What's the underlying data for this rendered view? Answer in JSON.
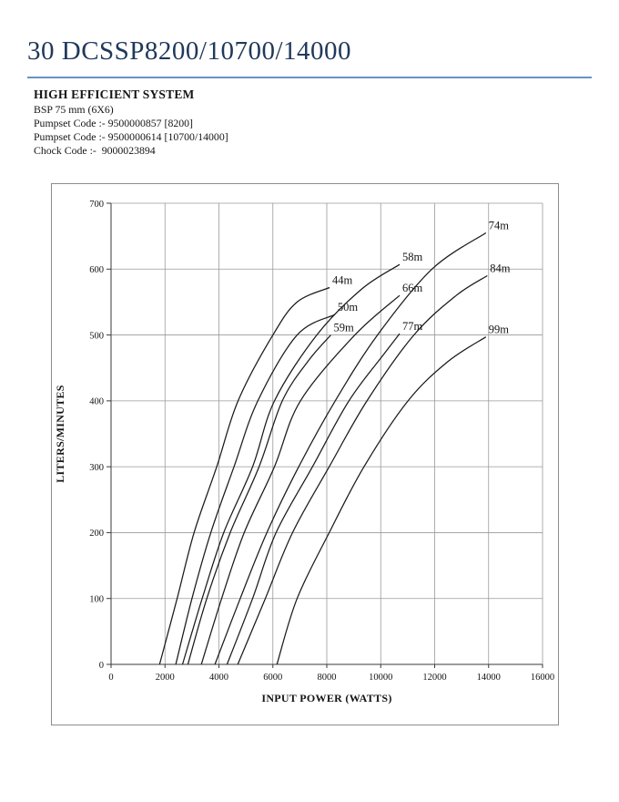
{
  "page": {
    "title": "30 DCSSP8200/10700/14000",
    "section_heading": "HIGH EFFICIENT SYSTEM",
    "spec_lines": [
      "BSP 75 mm (6X6)",
      "Pumpset Code :- 9500000857 [8200]",
      "Pumpset Code :- 9500000614 [10700/14000]",
      "Chock Code :-  9000023894"
    ],
    "title_color": "#20395b",
    "rule_color": "#6892c2"
  },
  "chart_data": {
    "type": "line",
    "title": "",
    "xlabel": "INPUT POWER (WATTS)",
    "ylabel": "LITERS/MINUTES",
    "xlim": [
      0,
      16000
    ],
    "ylim": [
      0,
      700
    ],
    "x_ticks": [
      0,
      2000,
      4000,
      6000,
      8000,
      10000,
      12000,
      14000,
      16000
    ],
    "y_ticks": [
      0,
      100,
      200,
      300,
      400,
      500,
      600,
      700
    ],
    "grid": true,
    "legend_position": "labels-at-curve-ends",
    "curve_color": "#1a1a1a",
    "grid_color": "#9a9a9a",
    "series": [
      {
        "name": "44m",
        "points": [
          [
            1800,
            0
          ],
          [
            2450,
            100
          ],
          [
            3080,
            200
          ],
          [
            3920,
            300
          ],
          [
            4710,
            400
          ],
          [
            6000,
            500
          ],
          [
            6900,
            550
          ],
          [
            8100,
            572
          ]
        ]
      },
      {
        "name": "50m",
        "points": [
          [
            2400,
            0
          ],
          [
            3000,
            100
          ],
          [
            3700,
            200
          ],
          [
            4560,
            300
          ],
          [
            5440,
            400
          ],
          [
            6900,
            500
          ],
          [
            8300,
            531
          ]
        ]
      },
      {
        "name": "59m",
        "points": [
          [
            2850,
            0
          ],
          [
            3550,
            100
          ],
          [
            4420,
            200
          ],
          [
            5490,
            300
          ],
          [
            6350,
            400
          ],
          [
            7300,
            460
          ],
          [
            8150,
            500
          ]
        ]
      },
      {
        "name": "58m",
        "points": [
          [
            2650,
            0
          ],
          [
            3380,
            100
          ],
          [
            4180,
            200
          ],
          [
            5250,
            300
          ],
          [
            6060,
            400
          ],
          [
            7630,
            500
          ],
          [
            9300,
            570
          ],
          [
            10700,
            607
          ]
        ]
      },
      {
        "name": "66m",
        "points": [
          [
            3350,
            0
          ],
          [
            4100,
            100
          ],
          [
            4940,
            200
          ],
          [
            6060,
            300
          ],
          [
            7020,
            400
          ],
          [
            9040,
            500
          ],
          [
            10700,
            560
          ]
        ]
      },
      {
        "name": "77m",
        "points": [
          [
            4300,
            0
          ],
          [
            5250,
            100
          ],
          [
            6120,
            200
          ],
          [
            7470,
            300
          ],
          [
            8820,
            400
          ],
          [
            10100,
            470
          ],
          [
            10700,
            502
          ]
        ]
      },
      {
        "name": "74m",
        "points": [
          [
            3850,
            0
          ],
          [
            4790,
            100
          ],
          [
            5780,
            200
          ],
          [
            6960,
            300
          ],
          [
            8310,
            400
          ],
          [
            9880,
            500
          ],
          [
            11900,
            600
          ],
          [
            13900,
            655
          ]
        ]
      },
      {
        "name": "84m",
        "points": [
          [
            4700,
            0
          ],
          [
            5720,
            100
          ],
          [
            6730,
            200
          ],
          [
            8090,
            300
          ],
          [
            9490,
            400
          ],
          [
            11230,
            500
          ],
          [
            12800,
            560
          ],
          [
            13950,
            590
          ]
        ]
      },
      {
        "name": "99m",
        "points": [
          [
            6150,
            0
          ],
          [
            6900,
            100
          ],
          [
            8090,
            200
          ],
          [
            9380,
            300
          ],
          [
            11010,
            400
          ],
          [
            12500,
            460
          ],
          [
            13900,
            497
          ]
        ]
      }
    ]
  }
}
